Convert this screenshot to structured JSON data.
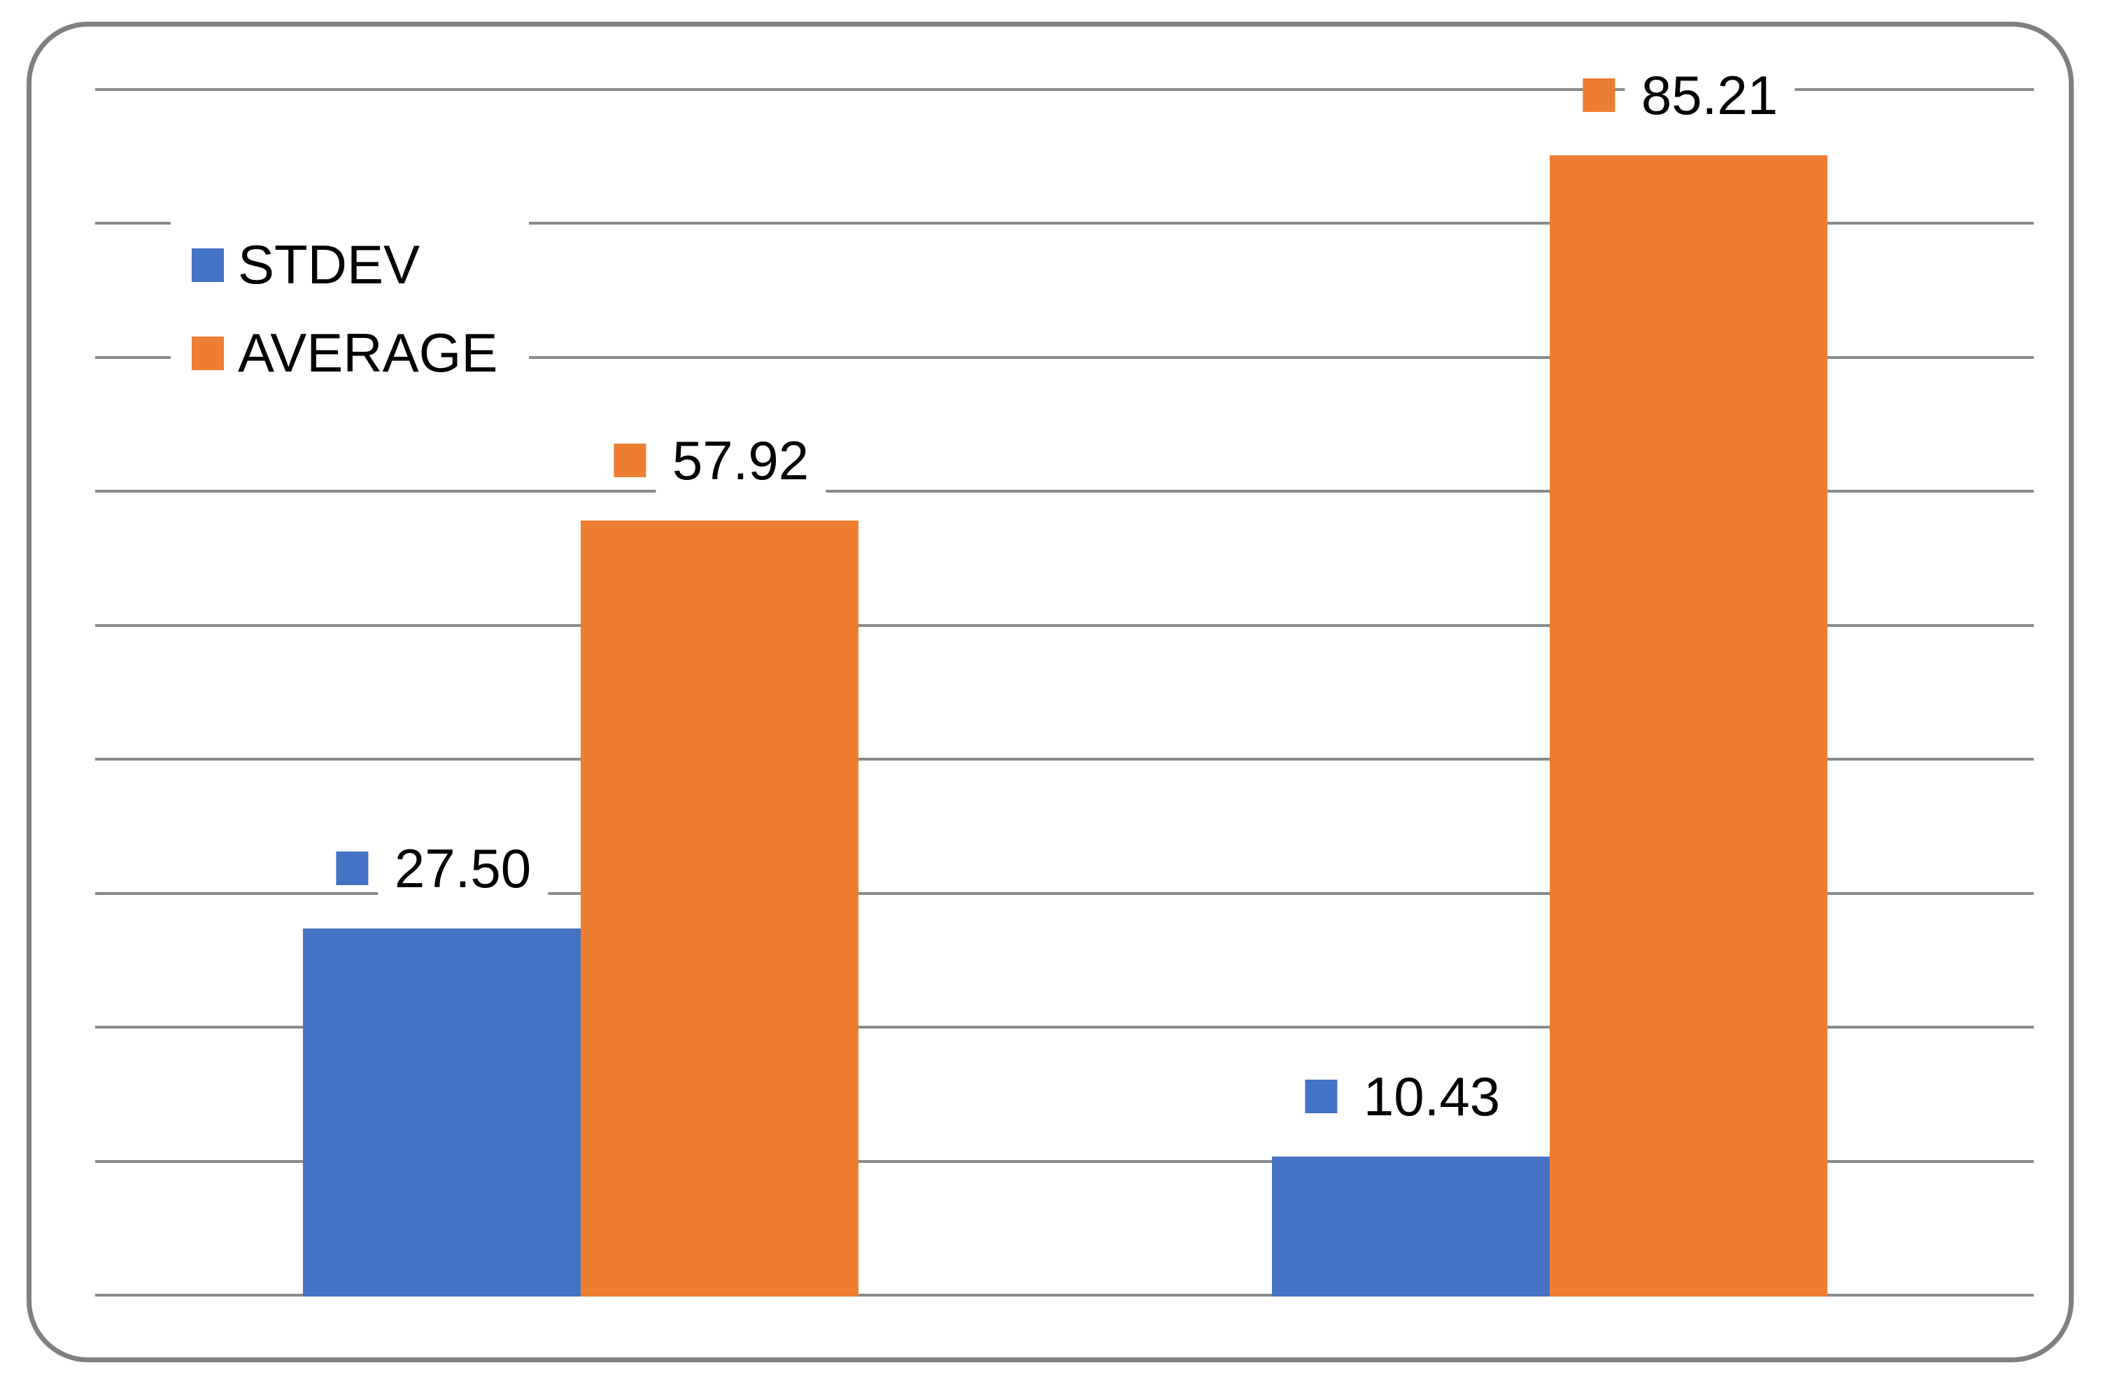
{
  "chart_data": {
    "type": "bar",
    "categories": [
      "",
      ""
    ],
    "series": [
      {
        "name": "STDEV",
        "color": "#4472C4",
        "values": [
          27.5,
          10.43
        ],
        "labels": [
          "27.50",
          "10.43"
        ]
      },
      {
        "name": "AVERAGE",
        "color": "#ED7D31",
        "values": [
          57.92,
          85.21
        ],
        "labels": [
          "57.92",
          "85.21"
        ]
      }
    ],
    "title": "",
    "xlabel": "",
    "ylabel": "",
    "ylim": [
      0,
      90
    ],
    "gridline_step": 10,
    "grid": true,
    "axis_tick_labels_visible": false,
    "legend_position": "top-left-inside",
    "data_label_style": "value-with-series-key-square"
  },
  "legend": {
    "items": [
      {
        "label": "STDEV",
        "color": "#4472C4"
      },
      {
        "label": "AVERAGE",
        "color": "#ED7D31"
      }
    ]
  },
  "colors": {
    "grid": "#898989",
    "frame": "#7F7F7F",
    "label_text": "#000000",
    "background": "#FFFFFF"
  }
}
